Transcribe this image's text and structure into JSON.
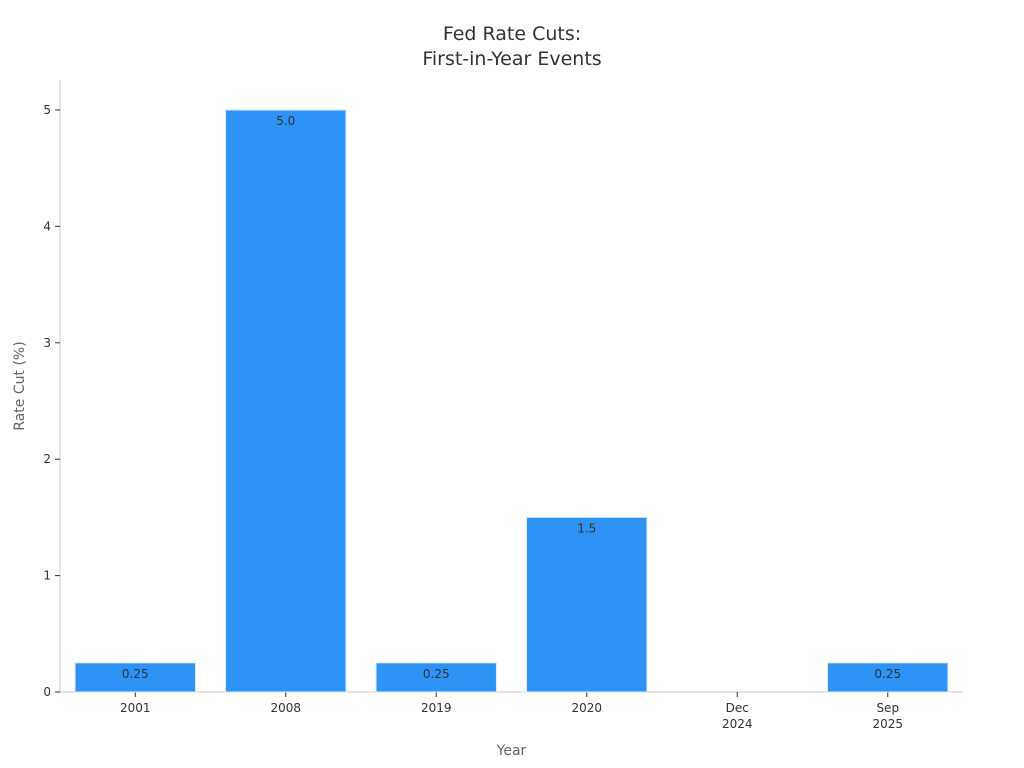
{
  "chart_data": {
    "type": "bar",
    "title_lines": [
      "Fed Rate Cuts:",
      "First-in-Year Events"
    ],
    "xlabel": "Year",
    "ylabel": "Rate Cut (%)",
    "categories": [
      [
        "2001"
      ],
      [
        "2008"
      ],
      [
        "2019"
      ],
      [
        "2020"
      ],
      [
        "Dec",
        "2024"
      ],
      [
        "Sep",
        "2025"
      ]
    ],
    "values": [
      0.25,
      5.0,
      0.25,
      1.5,
      0,
      0.25
    ],
    "data_labels": [
      "0.25",
      "5.0",
      "0.25",
      "1.5",
      "",
      "0.25"
    ],
    "ylim": [
      0,
      5.25
    ],
    "yticks": [
      0,
      1,
      2,
      3,
      4,
      5
    ],
    "grid": false,
    "colors": {
      "bar": "#2e93f7",
      "bar_edge": "#d8e8f8"
    }
  }
}
